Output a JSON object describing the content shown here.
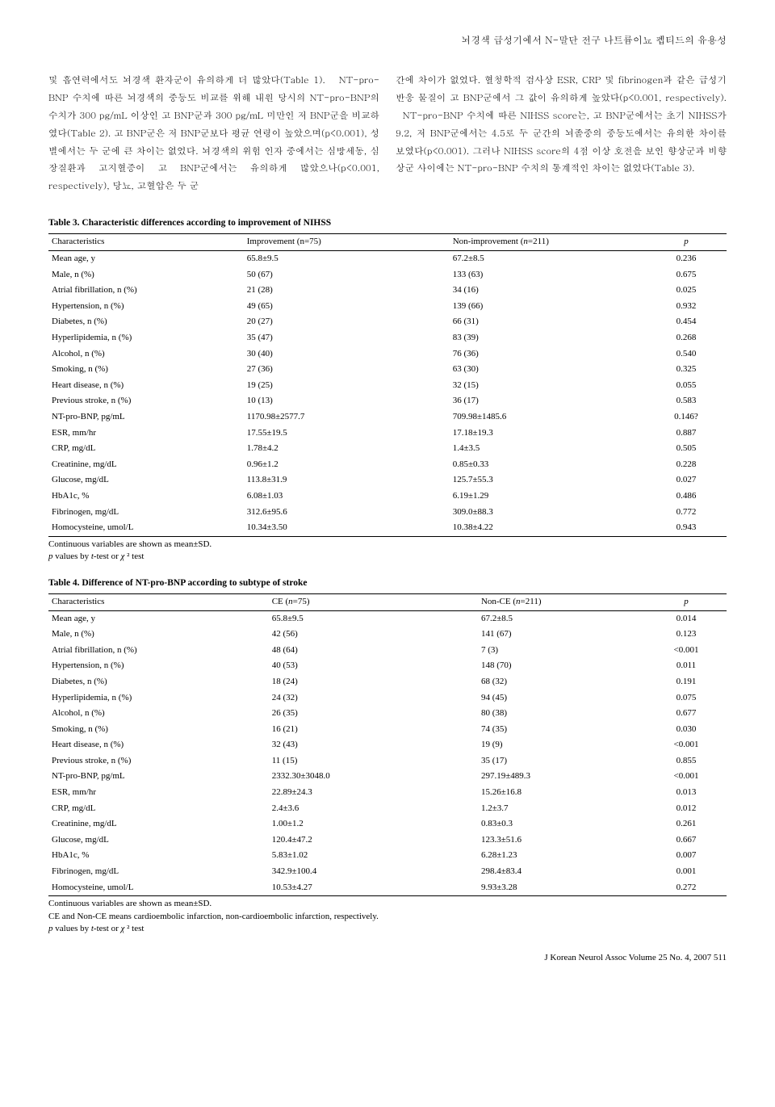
{
  "header": "뇌경색 급성기에서 N-말단 전구 나트륨이뇨 펩티드의 유용성",
  "body": {
    "left": "및 흡연력에서도 뇌경색 환자군이 유의하게 더 많았다(Table 1).\n  NT-pro-BNP 수치에 따른 뇌경색의 중등도 비교를 위해 내원 당시의 NT-pro-BNP의 수치가 300 pg/mL 이상인 고 BNP군과 300 pg/mL 미만인 저 BNP군을 비교하였다(Table 2). 고 BNP군은 저 BNP군보다 평균 연령이 높았으며(p<0.001), 성별에서는 두 군에 큰 차이는 없었다. 뇌경색의 위험 인자 중에서는 심방세동, 심장질환과 고지혈증이 고 BNP군에서는 유의하게 많았으나(p<0.001, respectively), 당뇨, 고혈압은 두 군",
    "right": "간에 차이가 없었다. 혈청학적 검사상 ESR, CRP 및 fibrinogen과 같은 급성기 반응 물질이 고 BNP군에서 그 값이 유의하게 높았다(p<0.001, respectively).\n  NT-pro-BNP 수치에 따른 NIHSS score는, 고 BNP군에서는 초기 NIHSS가 9.2, 저 BNP군에서는 4.5로 두 군간의 뇌졸중의 중등도에서는 유의한 차이를 보였다(p<0.001). 그러나 NIHSS score의 4점 이상 호전을 보인 향상군과 비향상군 사이에는 NT-pro-BNP 수치의 통계적인 차이는 없었다(Table 3)."
  },
  "table3": {
    "title": "Table 3. Characteristic differences according to improvement of NIHSS",
    "headers": [
      "Characteristics",
      "Improvement (n=75)",
      "Non-improvement (n=211)",
      "p"
    ],
    "rows": [
      [
        "Mean age, y",
        "65.8±9.5",
        "67.2±8.5",
        "0.236"
      ],
      [
        "Male, n (%)",
        "50 (67)",
        "133 (63)",
        "0.675"
      ],
      [
        "Atrial fibrillation, n (%)",
        "21 (28)",
        "34 (16)",
        "0.025"
      ],
      [
        "Hypertension, n (%)",
        "49 (65)",
        "139 (66)",
        "0.932"
      ],
      [
        "Diabetes, n (%)",
        "20 (27)",
        "66 (31)",
        "0.454"
      ],
      [
        "Hyperlipidemia, n (%)",
        "35 (47)",
        "83 (39)",
        "0.268"
      ],
      [
        "Alcohol, n (%)",
        "30 (40)",
        "76 (36)",
        "0.540"
      ],
      [
        "Smoking, n (%)",
        "27 (36)",
        "63 (30)",
        "0.325"
      ],
      [
        "Heart disease, n (%)",
        "19 (25)",
        "32 (15)",
        "0.055"
      ],
      [
        "Previous stroke, n (%)",
        "10 (13)",
        "36 (17)",
        "0.583"
      ],
      [
        "NT-pro-BNP, pg/mL",
        "1170.98±2577.7",
        "709.98±1485.6",
        "0.146?"
      ],
      [
        "ESR, mm/hr",
        "17.55±19.5",
        "17.18±19.3",
        "0.887"
      ],
      [
        "CRP, mg/dL",
        "1.78±4.2",
        "1.4±3.5",
        "0.505"
      ],
      [
        "Creatinine, mg/dL",
        "0.96±1.2",
        "0.85±0.33",
        "0.228"
      ],
      [
        "Glucose, mg/dL",
        "113.8±31.9",
        "125.7±55.3",
        "0.027"
      ],
      [
        "HbA1c, %",
        "6.08±1.03",
        "6.19±1.29",
        "0.486"
      ],
      [
        "Fibrinogen, mg/dL",
        "312.6±95.6",
        "309.0±88.3",
        "0.772"
      ],
      [
        "Homocysteine, umol/L",
        "10.34±3.50",
        "10.38±4.22",
        "0.943"
      ]
    ],
    "footer": [
      "Continuous variables are shown as mean±SD.",
      "p values by t-test or χ² test"
    ]
  },
  "table4": {
    "title": "Table 4. Difference of NT-pro-BNP according to subtype of stroke",
    "headers": [
      "Characteristics",
      "CE (n=75)",
      "Non-CE (n=211)",
      "p"
    ],
    "rows": [
      [
        "Mean age, y",
        "65.8±9.5",
        "67.2±8.5",
        "0.014"
      ],
      [
        "Male, n (%)",
        "42 (56)",
        "141 (67)",
        "0.123"
      ],
      [
        "Atrial fibrillation, n (%)",
        "48 (64)",
        "7 (3)",
        "<0.001"
      ],
      [
        "Hypertension, n (%)",
        "40 (53)",
        "148 (70)",
        "0.011"
      ],
      [
        "Diabetes, n (%)",
        "18 (24)",
        "68 (32)",
        "0.191"
      ],
      [
        "Hyperlipidemia, n (%)",
        "24 (32)",
        "94 (45)",
        "0.075"
      ],
      [
        "Alcohol, n (%)",
        "26 (35)",
        "80 (38)",
        "0.677"
      ],
      [
        "Smoking, n (%)",
        "16 (21)",
        "74 (35)",
        "0.030"
      ],
      [
        "Heart disease, n (%)",
        "32 (43)",
        "19 (9)",
        "<0.001"
      ],
      [
        "Previous stroke, n (%)",
        "11 (15)",
        "35 (17)",
        "0.855"
      ],
      [
        "NT-pro-BNP, pg/mL",
        "2332.30±3048.0",
        "297.19±489.3",
        "<0.001"
      ],
      [
        "ESR, mm/hr",
        "22.89±24.3",
        "15.26±16.8",
        "0.013"
      ],
      [
        "CRP, mg/dL",
        "2.4±3.6",
        "1.2±3.7",
        "0.012"
      ],
      [
        "Creatinine, mg/dL",
        "1.00±1.2",
        "0.83±0.3",
        "0.261"
      ],
      [
        "Glucose, mg/dL",
        "120.4±47.2",
        "123.3±51.6",
        "0.667"
      ],
      [
        "HbA1c, %",
        "5.83±1.02",
        "6.28±1.23",
        "0.007"
      ],
      [
        "Fibrinogen, mg/dL",
        "342.9±100.4",
        "298.4±83.4",
        "0.001"
      ],
      [
        "Homocysteine, umol/L",
        "10.53±4.27",
        "9.93±3.28",
        "0.272"
      ]
    ],
    "footer": [
      "Continuous variables are shown as mean±SD.",
      "CE and Non-CE means cardioembolic infarction, non-cardioembolic infarction, respectively.",
      "p values by t-test or χ² test"
    ]
  },
  "footer": "J Korean Neurol Assoc Volume 25 No. 4, 2007  511"
}
